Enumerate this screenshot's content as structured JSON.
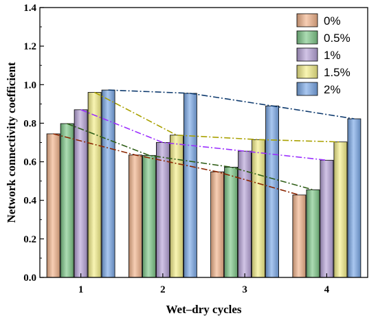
{
  "chart_data": {
    "type": "bar",
    "xlabel": "Wet–dry cycles",
    "ylabel": "Network connectivity coefficient",
    "categories": [
      "1",
      "2",
      "3",
      "4"
    ],
    "ylim": [
      0.0,
      1.4
    ],
    "yticks": [
      "0.0",
      "0.2",
      "0.4",
      "0.6",
      "0.8",
      "1.0",
      "1.2",
      "1.4"
    ],
    "legend_position": "top-right",
    "grid": false,
    "trend_lines": "dash-dot lines connecting each series' bars across cycles",
    "series": [
      {
        "name": "0%",
        "values": [
          0.745,
          0.635,
          0.548,
          0.428
        ],
        "color": "#f2b48c",
        "line_color": "#8b2500"
      },
      {
        "name": "0.5%",
        "values": [
          0.798,
          0.633,
          0.572,
          0.455
        ],
        "color": "#7fc98a",
        "line_color": "#2f5e17"
      },
      {
        "name": "1%",
        "values": [
          0.87,
          0.7,
          0.655,
          0.608
        ],
        "color": "#b8a4d9",
        "line_color": "#9b30ff"
      },
      {
        "name": "1.5%",
        "values": [
          0.96,
          0.738,
          0.715,
          0.703
        ],
        "color": "#f5f08a",
        "line_color": "#a9a100"
      },
      {
        "name": "2%",
        "values": [
          0.972,
          0.955,
          0.89,
          0.823
        ],
        "color": "#7aa9e8",
        "line_color": "#0e3a6e"
      }
    ]
  }
}
